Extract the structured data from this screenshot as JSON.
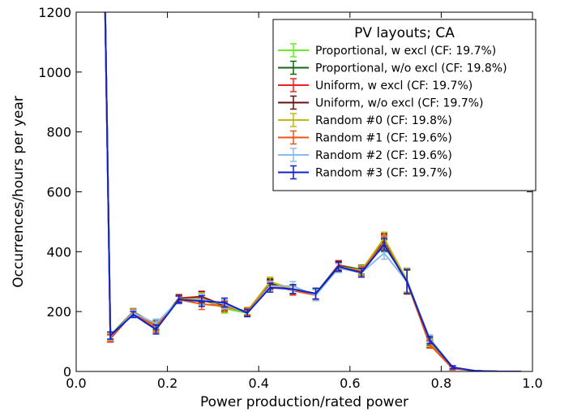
{
  "chart_data": {
    "type": "line",
    "title": "",
    "xlabel": "Power production/rated power",
    "ylabel": "Occurrences/hours per year",
    "xlim": [
      0.0,
      1.0
    ],
    "ylim": [
      0,
      1200
    ],
    "xticks": [
      "0.0",
      "0.2",
      "0.4",
      "0.6",
      "0.8",
      "1.0"
    ],
    "yticks": [
      "0",
      "200",
      "400",
      "600",
      "800",
      "1000",
      "1200"
    ],
    "grid": false,
    "legend": {
      "title": "PV layouts; CA",
      "placement": "top-right"
    },
    "x": [
      0.0625,
      0.075,
      0.125,
      0.175,
      0.225,
      0.275,
      0.325,
      0.375,
      0.425,
      0.475,
      0.525,
      0.575,
      0.625,
      0.675,
      0.725,
      0.775,
      0.825,
      0.875,
      0.925,
      0.975
    ],
    "series": [
      {
        "name": "Proportional, w excl (CF: 19.7%)",
        "color": "#66ee22",
        "values": [
          1300,
          115,
          200,
          150,
          245,
          245,
          210,
          195,
          300,
          275,
          258,
          350,
          335,
          440,
          300,
          95,
          12,
          2,
          0,
          0
        ],
        "errors": [
          0,
          12,
          10,
          15,
          12,
          18,
          15,
          12,
          15,
          15,
          18,
          15,
          15,
          20,
          40,
          12,
          5,
          0,
          0,
          0
        ]
      },
      {
        "name": "Proportional, w/o excl (CF: 19.8%)",
        "color": "#116611",
        "values": [
          1300,
          120,
          200,
          155,
          240,
          240,
          215,
          200,
          295,
          275,
          260,
          355,
          340,
          420,
          305,
          100,
          12,
          2,
          0,
          0
        ],
        "errors": [
          0,
          12,
          10,
          15,
          12,
          18,
          15,
          12,
          15,
          15,
          18,
          15,
          15,
          20,
          40,
          12,
          5,
          0,
          0,
          0
        ]
      },
      {
        "name": "Uniform, w excl (CF: 19.7%)",
        "color": "#ee2222",
        "values": [
          1300,
          110,
          195,
          145,
          245,
          250,
          220,
          200,
          290,
          270,
          255,
          355,
          335,
          435,
          300,
          90,
          10,
          2,
          0,
          0
        ],
        "errors": [
          0,
          12,
          10,
          15,
          12,
          18,
          15,
          12,
          15,
          15,
          18,
          15,
          15,
          20,
          40,
          12,
          5,
          0,
          0,
          0
        ]
      },
      {
        "name": "Uniform, w/o excl (CF: 19.7%)",
        "color": "#661111",
        "values": [
          1300,
          112,
          198,
          150,
          242,
          248,
          218,
          198,
          292,
          272,
          258,
          352,
          338,
          440,
          302,
          92,
          11,
          2,
          0,
          0
        ],
        "errors": [
          0,
          12,
          10,
          15,
          12,
          18,
          15,
          12,
          15,
          15,
          18,
          15,
          15,
          20,
          40,
          12,
          5,
          0,
          0,
          0
        ]
      },
      {
        "name": "Random #0 (CF: 19.8%)",
        "color": "#bbbb11",
        "values": [
          1300,
          115,
          200,
          148,
          240,
          245,
          212,
          202,
          300,
          275,
          258,
          350,
          338,
          445,
          305,
          95,
          12,
          2,
          0,
          0
        ],
        "errors": [
          0,
          12,
          10,
          15,
          12,
          18,
          15,
          12,
          15,
          15,
          18,
          15,
          15,
          20,
          40,
          12,
          5,
          0,
          0,
          0
        ]
      },
      {
        "name": "Random #1 (CF: 19.6%)",
        "color": "#ee5511",
        "values": [
          1300,
          112,
          198,
          152,
          240,
          225,
          218,
          200,
          288,
          272,
          255,
          348,
          335,
          430,
          298,
          90,
          11,
          2,
          0,
          0
        ],
        "errors": [
          0,
          12,
          10,
          15,
          12,
          18,
          15,
          12,
          15,
          15,
          18,
          15,
          15,
          20,
          40,
          12,
          5,
          0,
          0,
          0
        ]
      },
      {
        "name": "Random #2 (CF: 19.6%)",
        "color": "#88bbee",
        "values": [
          1300,
          118,
          195,
          160,
          238,
          240,
          225,
          195,
          285,
          285,
          255,
          345,
          330,
          395,
          300,
          110,
          14,
          2,
          0,
          0
        ],
        "errors": [
          0,
          12,
          10,
          15,
          12,
          18,
          15,
          12,
          15,
          15,
          18,
          15,
          15,
          20,
          40,
          12,
          5,
          0,
          0,
          0
        ]
      },
      {
        "name": "Random #3 (CF: 19.7%)",
        "color": "#1122cc",
        "values": [
          1300,
          120,
          190,
          140,
          240,
          235,
          230,
          195,
          280,
          275,
          260,
          350,
          330,
          425,
          300,
          105,
          14,
          2,
          0,
          0
        ],
        "errors": [
          0,
          12,
          10,
          15,
          12,
          18,
          15,
          12,
          15,
          15,
          18,
          15,
          15,
          20,
          40,
          12,
          5,
          0,
          0,
          0
        ]
      }
    ]
  }
}
